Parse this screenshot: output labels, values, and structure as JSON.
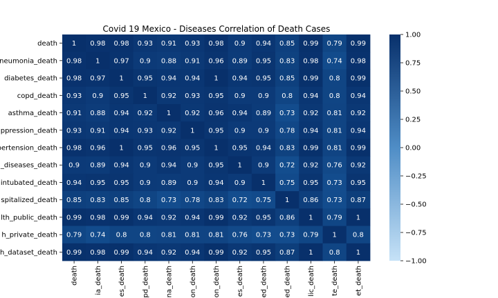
{
  "chart_data": {
    "type": "heatmap",
    "title": "Covid 19 Mexico - Diseases Correlation of Death Cases",
    "row_labels": [
      "death",
      "neumonia_death",
      "diabetes_death",
      "copd_death",
      "asthma_death",
      "ppression_death",
      "pertension_death",
      "_diseases_death",
      "intubated_death",
      "spitalized_death",
      "lth_public_death",
      "h_private_death",
      "h_dataset_death"
    ],
    "col_labels": [
      "death",
      "ia_death",
      "es_death",
      "pd_death",
      "na_death",
      "on_death",
      "on_death",
      "es_death",
      "ed_death",
      "ed_death",
      "lic_death",
      "te_death",
      "et_death"
    ],
    "values": [
      [
        1,
        0.98,
        0.98,
        0.93,
        0.91,
        0.93,
        0.98,
        0.9,
        0.94,
        0.85,
        0.99,
        0.79,
        0.99
      ],
      [
        0.98,
        1,
        0.97,
        0.9,
        0.88,
        0.91,
        0.96,
        0.89,
        0.95,
        0.83,
        0.98,
        0.74,
        0.98
      ],
      [
        0.98,
        0.97,
        1,
        0.95,
        0.94,
        0.94,
        1,
        0.94,
        0.95,
        0.85,
        0.99,
        0.8,
        0.99
      ],
      [
        0.93,
        0.9,
        0.95,
        1,
        0.92,
        0.93,
        0.95,
        0.9,
        0.9,
        0.8,
        0.94,
        0.8,
        0.94
      ],
      [
        0.91,
        0.88,
        0.94,
        0.92,
        1,
        0.92,
        0.96,
        0.94,
        0.89,
        0.73,
        0.92,
        0.81,
        0.92
      ],
      [
        0.93,
        0.91,
        0.94,
        0.93,
        0.92,
        1,
        0.95,
        0.9,
        0.9,
        0.78,
        0.94,
        0.81,
        0.94
      ],
      [
        0.98,
        0.96,
        1,
        0.95,
        0.96,
        0.95,
        1,
        0.95,
        0.94,
        0.83,
        0.99,
        0.81,
        0.99
      ],
      [
        0.9,
        0.89,
        0.94,
        0.9,
        0.94,
        0.9,
        0.95,
        1,
        0.9,
        0.72,
        0.92,
        0.76,
        0.92
      ],
      [
        0.94,
        0.95,
        0.95,
        0.9,
        0.89,
        0.9,
        0.94,
        0.9,
        1,
        0.75,
        0.95,
        0.73,
        0.95
      ],
      [
        0.85,
        0.83,
        0.85,
        0.8,
        0.73,
        0.78,
        0.83,
        0.72,
        0.75,
        1,
        0.86,
        0.73,
        0.87
      ],
      [
        0.99,
        0.98,
        0.99,
        0.94,
        0.92,
        0.94,
        0.99,
        0.92,
        0.95,
        0.86,
        1,
        0.79,
        1
      ],
      [
        0.79,
        0.74,
        0.8,
        0.8,
        0.81,
        0.81,
        0.81,
        0.76,
        0.73,
        0.73,
        0.79,
        1,
        0.8
      ],
      [
        0.99,
        0.98,
        0.99,
        0.94,
        0.92,
        0.94,
        0.99,
        0.92,
        0.95,
        0.87,
        1,
        0.8,
        1
      ]
    ],
    "colorbar": {
      "vmin": -1.0,
      "vmax": 1.0,
      "ticks": [
        "1.00",
        "0.75",
        "0.50",
        "0.25",
        "0.00",
        "−0.25",
        "−0.50",
        "−0.75",
        "−1.00"
      ],
      "colors": [
        "#c6e2f7",
        "#08306b"
      ]
    }
  }
}
